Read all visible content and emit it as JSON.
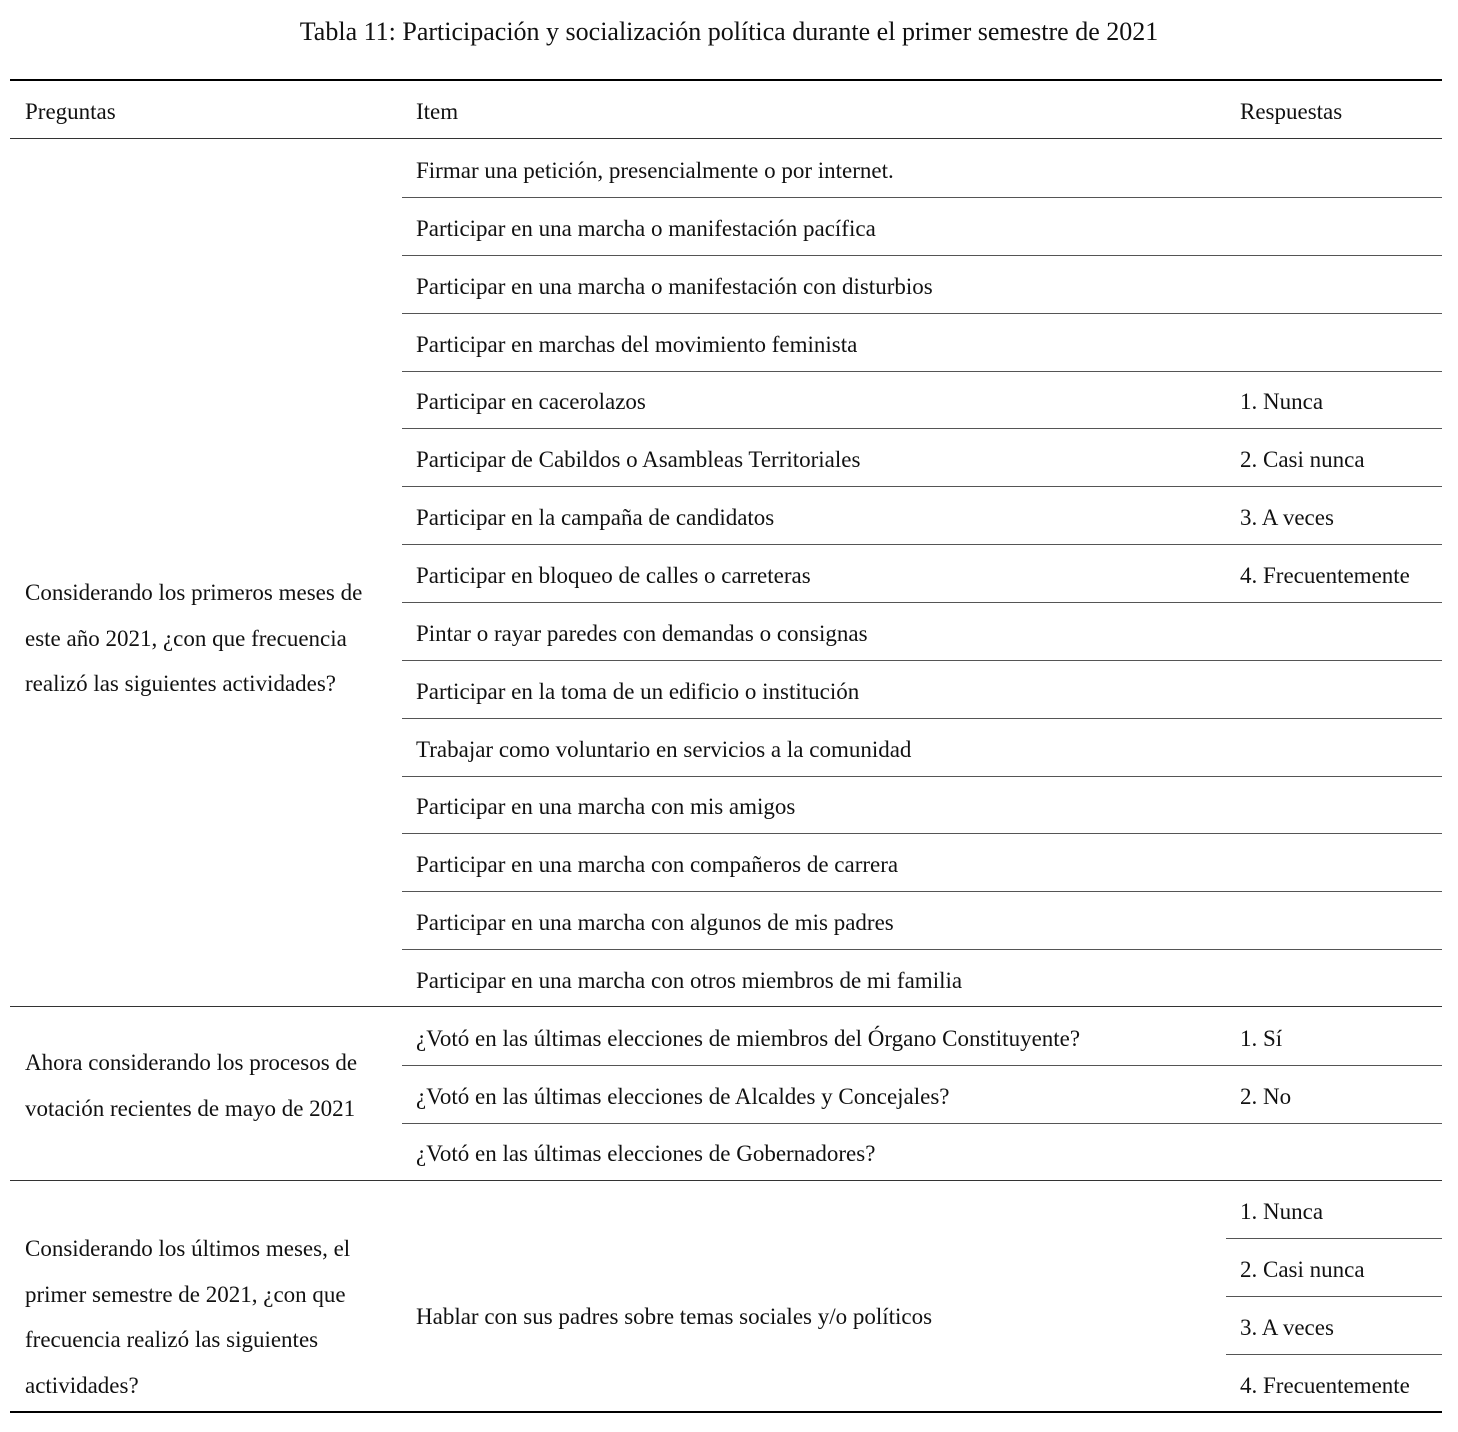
{
  "caption": "Tabla 11: Participación y socialización política durante el primer semestre de 2021",
  "headers": {
    "preguntas": "Preguntas",
    "item": "Item",
    "respuestas": "Respuestas"
  },
  "sections": [
    {
      "question": "Considerando los primeros meses de este año 2021, ¿con que frecuencia realizó las siguientes actividades?",
      "items": [
        "Firmar una petición, presencialmente o por internet.",
        "Participar en una marcha o manifestación pacífica",
        "Participar en una marcha o manifestación con disturbios",
        "Participar en marchas del movimiento feminista",
        "Participar en cacerolazos",
        "Participar de Cabildos o Asambleas Territoriales",
        "Participar en la campaña de candidatos",
        "Participar en bloqueo de calles o carreteras",
        "Pintar o rayar paredes con demandas o consignas",
        "Participar en la toma de un edificio o institución",
        "Trabajar como voluntario en servicios a la comunidad",
        "Participar en una marcha con mis amigos",
        "Participar en una marcha con compañeros de carrera",
        "Participar en una marcha con algunos de mis padres",
        "Participar en una marcha con otros miembros de mi familia"
      ],
      "responses": [
        "1. Nunca",
        "2. Casi nunca",
        "3. A veces",
        "4. Frecuentemente"
      ]
    },
    {
      "question": "Ahora considerando los procesos de votación recientes de mayo de 2021",
      "items": [
        "¿Votó en las últimas elecciones de miembros del Órgano Constituyente?",
        "¿Votó en las últimas elecciones de Alcaldes y Concejales?",
        "¿Votó en las últimas elecciones de Gobernadores?"
      ],
      "responses": [
        "1. Sí",
        "2. No"
      ]
    },
    {
      "question": "Considerando los últimos meses, el primer semestre de 2021, ¿con que frecuencia realizó las siguientes actividades?",
      "items": [
        "Hablar con sus padres sobre temas sociales y/o políticos"
      ],
      "responses": [
        "1. Nunca",
        "2. Casi nunca",
        "3. A veces",
        "4. Frecuentemente"
      ]
    }
  ]
}
